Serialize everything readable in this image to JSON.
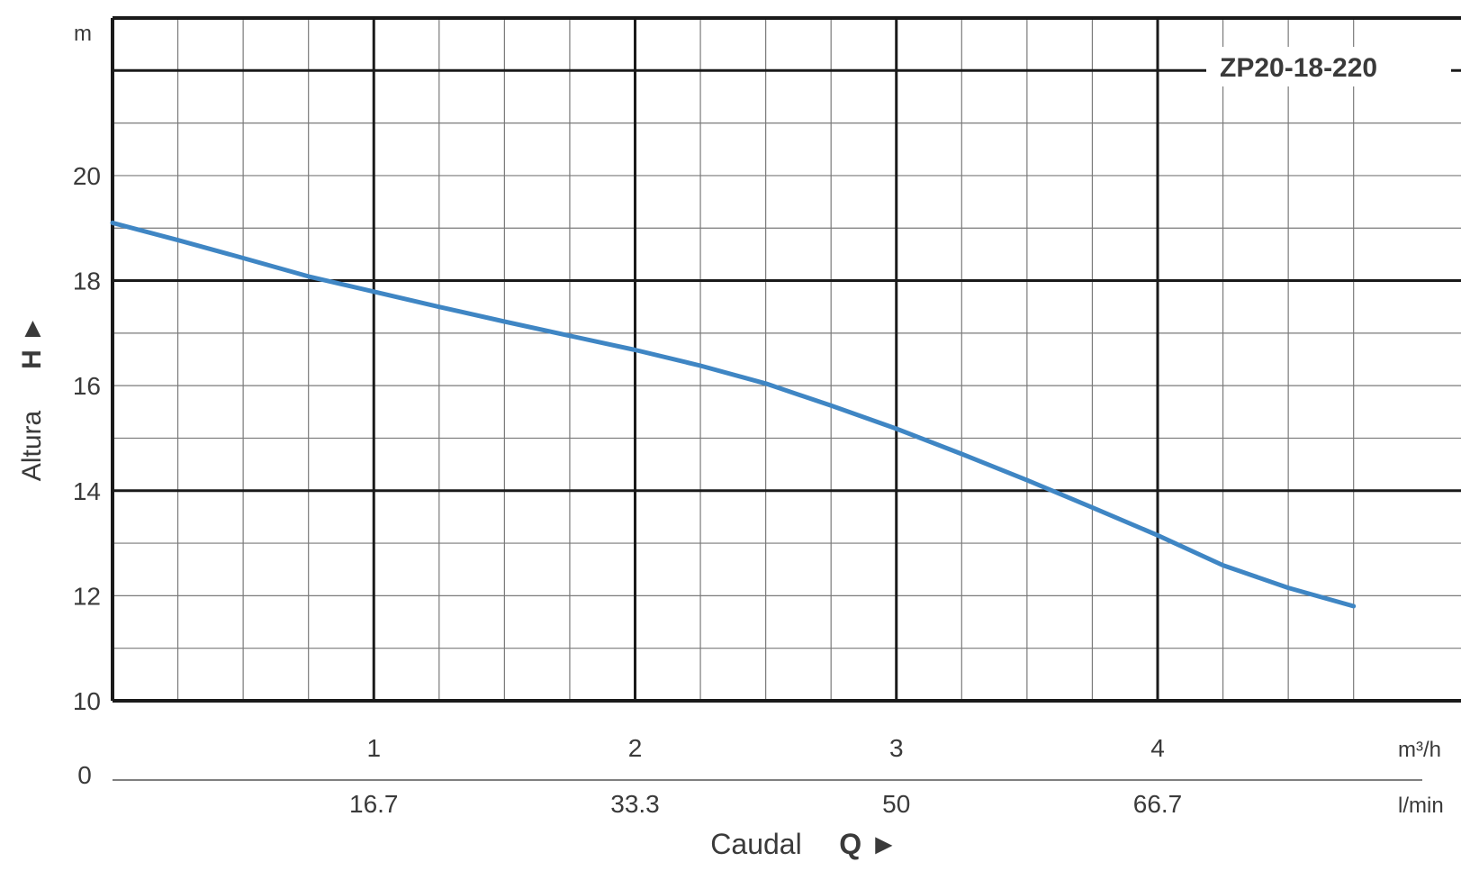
{
  "chart_data": {
    "type": "line",
    "series_label": "ZP20-18-220",
    "x": [
      0,
      0.25,
      0.5,
      0.75,
      1.0,
      1.25,
      1.5,
      1.75,
      2.0,
      2.25,
      2.5,
      2.75,
      3.0,
      3.25,
      3.5,
      3.75,
      4.0,
      4.25,
      4.5,
      4.75
    ],
    "y": [
      19.1,
      18.77,
      18.43,
      18.08,
      17.79,
      17.5,
      17.22,
      16.95,
      16.68,
      16.38,
      16.04,
      15.62,
      15.18,
      14.7,
      14.2,
      13.68,
      13.15,
      12.58,
      12.15,
      11.8
    ],
    "xlim": [
      0,
      4.75
    ],
    "ylim": [
      10,
      23
    ],
    "x_ticks": [
      1,
      2,
      3,
      4
    ],
    "x_tick_labels": [
      "1",
      "2",
      "3",
      "4"
    ],
    "x_unit": "m³/h",
    "x2_ticks": [
      1,
      2,
      3,
      4
    ],
    "x2_tick_labels": [
      "16.7",
      "33.3",
      "50",
      "66.7"
    ],
    "x2_unit": "l/min",
    "y_ticks": [
      10,
      12,
      14,
      16,
      18,
      20
    ],
    "y_tick_labels": [
      "10",
      "12",
      "14",
      "16",
      "18",
      "20"
    ],
    "y_unit": "m",
    "lower_zero_label": "0",
    "xlabel": "Caudal",
    "xlabel_symbol": "Q ►",
    "ylabel": "Altura",
    "ylabel_symbol": "H ►",
    "grid": true,
    "colors": {
      "curve": "#3f86c4",
      "major_grid": "#1a1a1a",
      "minor_grid": "#7a7a7a",
      "text": "#3a3a3a"
    }
  }
}
